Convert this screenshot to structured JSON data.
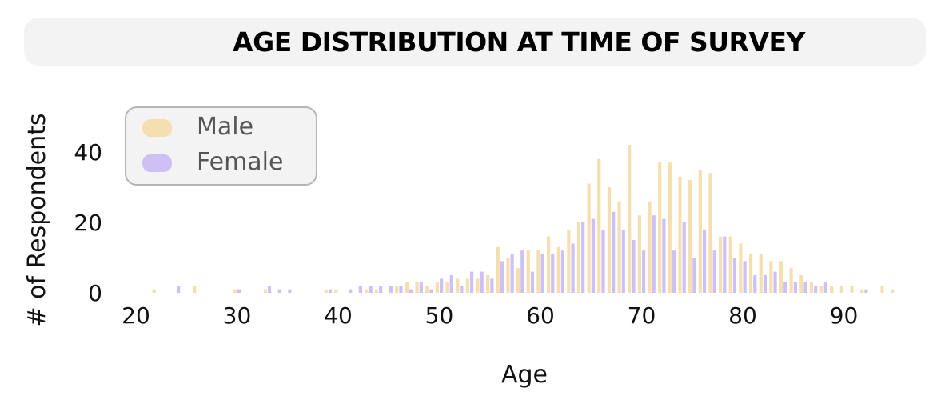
{
  "title": "AGE DISTRIBUTION AT TIME OF SURVEY",
  "colors": {
    "male": "#f5deb0",
    "female": "#cdc0f5",
    "title_bg": "#f3f3f3",
    "legend_bg": "#f3f3f3",
    "legend_border": "#b5b5b5"
  },
  "chart_data": {
    "type": "bar",
    "title": "AGE DISTRIBUTION AT TIME OF SURVEY",
    "xlabel": "Age",
    "ylabel": "# of Respondents",
    "xlim": [
      18,
      96
    ],
    "ylim": [
      0,
      50
    ],
    "xticks": [
      20,
      30,
      40,
      50,
      60,
      70,
      80,
      90
    ],
    "yticks": [
      0,
      20,
      40
    ],
    "grid": false,
    "legend_position": "top-left",
    "series": [
      {
        "name": "Male",
        "color": "#f5deb0",
        "points": [
          [
            22,
            1
          ],
          [
            26,
            2
          ],
          [
            30,
            1
          ],
          [
            33,
            1
          ],
          [
            39,
            1
          ],
          [
            40,
            1
          ],
          [
            43,
            1
          ],
          [
            44,
            1
          ],
          [
            46,
            2
          ],
          [
            47,
            3
          ],
          [
            48,
            3
          ],
          [
            49,
            2
          ],
          [
            50,
            3
          ],
          [
            51,
            3
          ],
          [
            52,
            4
          ],
          [
            53,
            4
          ],
          [
            54,
            4
          ],
          [
            55,
            5
          ],
          [
            56,
            13
          ],
          [
            57,
            10
          ],
          [
            58,
            7
          ],
          [
            59,
            12
          ],
          [
            60,
            12
          ],
          [
            61,
            16
          ],
          [
            62,
            13
          ],
          [
            63,
            18
          ],
          [
            64,
            20
          ],
          [
            65,
            31
          ],
          [
            66,
            38
          ],
          [
            67,
            30
          ],
          [
            68,
            26
          ],
          [
            69,
            42
          ],
          [
            70,
            22
          ],
          [
            71,
            26
          ],
          [
            72,
            37
          ],
          [
            73,
            37
          ],
          [
            74,
            33
          ],
          [
            75,
            32
          ],
          [
            76,
            35
          ],
          [
            77,
            34
          ],
          [
            78,
            16
          ],
          [
            79,
            16
          ],
          [
            80,
            14
          ],
          [
            81,
            11
          ],
          [
            82,
            11
          ],
          [
            83,
            9
          ],
          [
            84,
            9
          ],
          [
            85,
            7
          ],
          [
            86,
            5
          ],
          [
            87,
            3
          ],
          [
            88,
            2
          ],
          [
            89,
            2
          ],
          [
            90,
            2
          ],
          [
            91,
            2
          ],
          [
            92,
            1
          ],
          [
            94,
            2
          ],
          [
            95,
            1
          ]
        ]
      },
      {
        "name": "Female",
        "color": "#cdc0f5",
        "points": [
          [
            24,
            2
          ],
          [
            30,
            1
          ],
          [
            33,
            2
          ],
          [
            34,
            1
          ],
          [
            35,
            1
          ],
          [
            39,
            1
          ],
          [
            41,
            1
          ],
          [
            42,
            2
          ],
          [
            43,
            2
          ],
          [
            44,
            2
          ],
          [
            45,
            2
          ],
          [
            46,
            2
          ],
          [
            47,
            1
          ],
          [
            48,
            3
          ],
          [
            49,
            1
          ],
          [
            50,
            4
          ],
          [
            51,
            5
          ],
          [
            52,
            2
          ],
          [
            53,
            6
          ],
          [
            54,
            6
          ],
          [
            55,
            4
          ],
          [
            56,
            9
          ],
          [
            57,
            11
          ],
          [
            58,
            12
          ],
          [
            59,
            6
          ],
          [
            60,
            11
          ],
          [
            61,
            11
          ],
          [
            62,
            12
          ],
          [
            63,
            14
          ],
          [
            64,
            20
          ],
          [
            65,
            21
          ],
          [
            66,
            18
          ],
          [
            67,
            23
          ],
          [
            68,
            18
          ],
          [
            69,
            15
          ],
          [
            70,
            12
          ],
          [
            71,
            22
          ],
          [
            72,
            21
          ],
          [
            73,
            12
          ],
          [
            74,
            20
          ],
          [
            75,
            10
          ],
          [
            76,
            18
          ],
          [
            77,
            12
          ],
          [
            78,
            16
          ],
          [
            79,
            10
          ],
          [
            80,
            9
          ],
          [
            81,
            5
          ],
          [
            82,
            5
          ],
          [
            83,
            6
          ],
          [
            84,
            3
          ],
          [
            85,
            3
          ],
          [
            86,
            3
          ],
          [
            87,
            2
          ],
          [
            88,
            3
          ],
          [
            92,
            1
          ]
        ]
      }
    ]
  }
}
